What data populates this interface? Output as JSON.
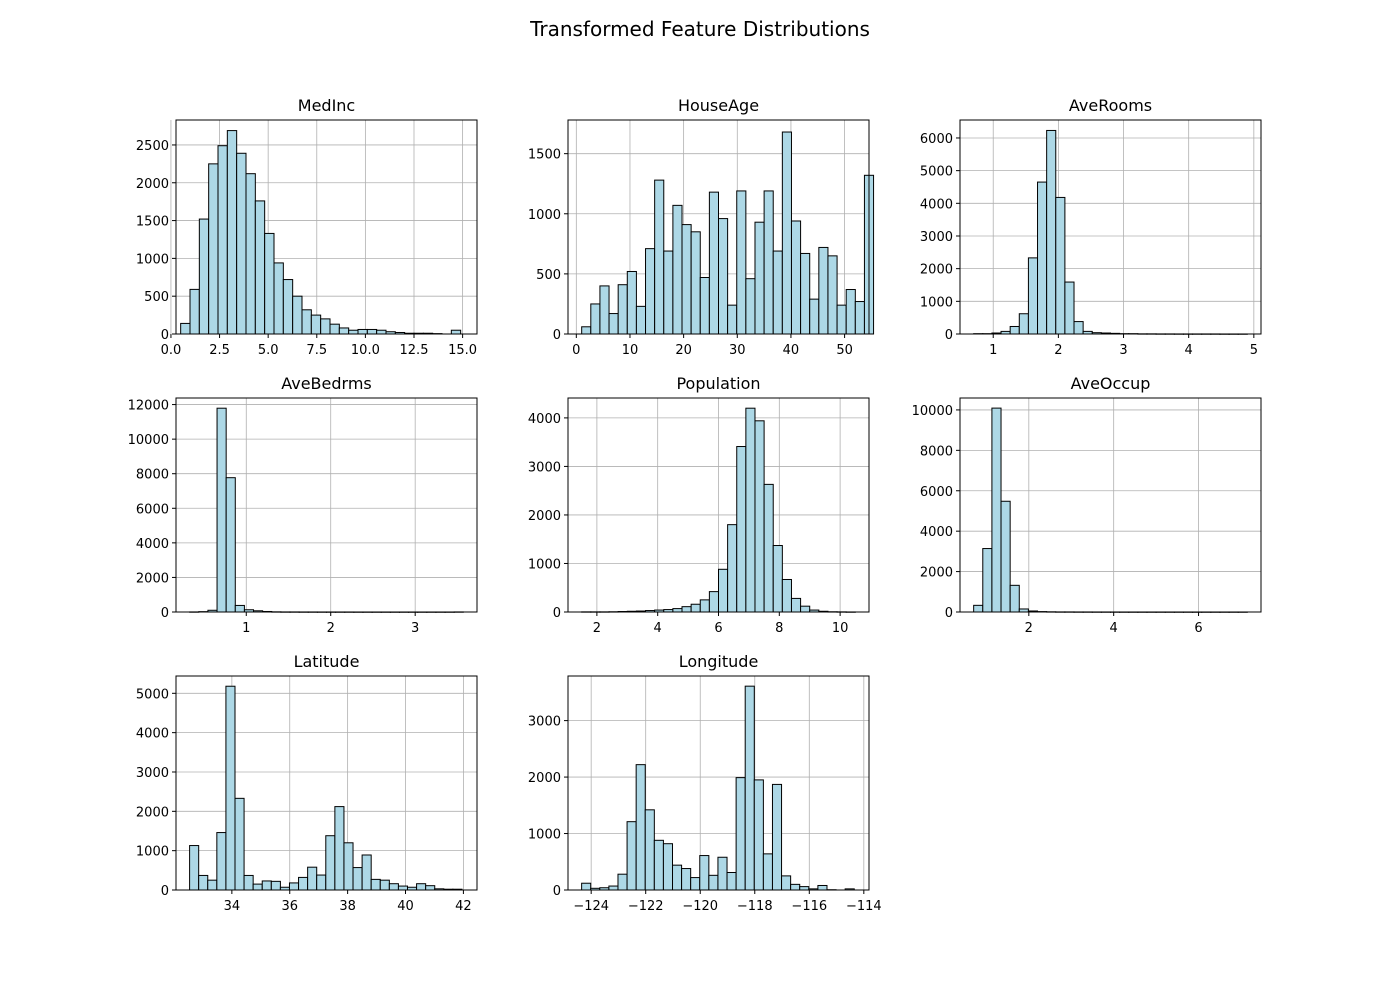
{
  "figure": {
    "title": "Transformed Feature Distributions"
  },
  "colors": {
    "bar_fill": "#add8e6",
    "bar_edge": "#000000",
    "grid": "#b0b0b0"
  },
  "chart_data": [
    {
      "type": "bar",
      "title": "MedInc",
      "bin_start": 0.5,
      "bin_width": 0.48,
      "values": [
        140,
        590,
        1520,
        2250,
        2490,
        2690,
        2390,
        2120,
        1760,
        1330,
        940,
        720,
        500,
        320,
        250,
        200,
        130,
        80,
        50,
        60,
        60,
        50,
        30,
        20,
        10,
        10,
        10,
        5,
        0,
        50
      ],
      "xlim": [
        0.26,
        15.74
      ],
      "ylim": [
        0,
        2830
      ],
      "xticks": [
        0.0,
        2.5,
        5.0,
        7.5,
        10.0,
        12.5,
        15.0
      ],
      "xtick_labels": [
        "0.0",
        "2.5",
        "5.0",
        "7.5",
        "10.0",
        "12.5",
        "15.0"
      ],
      "yticks": [
        0,
        500,
        1000,
        1500,
        2000,
        2500
      ],
      "ytick_labels": [
        "0",
        "500",
        "1000",
        "1500",
        "2000",
        "2500"
      ],
      "grid": true
    },
    {
      "type": "bar",
      "title": "HouseAge",
      "bin_start": 1,
      "bin_width": 1.7,
      "values": [
        60,
        250,
        400,
        170,
        410,
        520,
        230,
        710,
        1280,
        690,
        1070,
        910,
        850,
        470,
        1180,
        960,
        240,
        1190,
        460,
        930,
        1190,
        690,
        1680,
        940,
        670,
        290,
        720,
        650,
        240,
        370,
        270,
        1320
      ],
      "xlim": [
        -1.55,
        54.55
      ],
      "ylim": [
        0,
        1780
      ],
      "xticks": [
        0,
        10,
        20,
        30,
        40,
        50
      ],
      "xtick_labels": [
        "0",
        "10",
        "20",
        "30",
        "40",
        "50"
      ],
      "yticks": [
        0,
        500,
        1000,
        1500
      ],
      "ytick_labels": [
        "0",
        "500",
        "1000",
        "1500"
      ],
      "grid": true
    },
    {
      "type": "bar",
      "title": "AveRooms",
      "bin_start": 0.7,
      "bin_width": 0.14,
      "values": [
        10,
        10,
        30,
        80,
        230,
        620,
        2330,
        4650,
        6230,
        4180,
        1590,
        380,
        80,
        40,
        30,
        20,
        10,
        10,
        5,
        5,
        3,
        3,
        2,
        2,
        2,
        2,
        2,
        1,
        1,
        1
      ],
      "xlim": [
        0.49,
        5.11
      ],
      "ylim": [
        0,
        6550
      ],
      "xticks": [
        1,
        2,
        3,
        4,
        5
      ],
      "xtick_labels": [
        "1",
        "2",
        "3",
        "4",
        "5"
      ],
      "yticks": [
        0,
        1000,
        2000,
        3000,
        4000,
        5000,
        6000
      ],
      "ytick_labels": [
        "0",
        "1000",
        "2000",
        "3000",
        "4000",
        "5000",
        "6000"
      ],
      "grid": true
    },
    {
      "type": "bar",
      "title": "AveBedrms",
      "bin_start": 0.33,
      "bin_width": 0.108,
      "values": [
        5,
        20,
        100,
        11790,
        7770,
        380,
        130,
        70,
        30,
        10,
        5,
        5,
        3,
        3,
        2,
        2,
        2,
        2,
        1,
        1,
        1,
        1,
        1,
        1,
        1,
        1,
        1,
        1,
        1,
        5
      ],
      "xlim": [
        0.168,
        3.732
      ],
      "ylim": [
        0,
        12380
      ],
      "xticks": [
        1,
        2,
        3
      ],
      "xtick_labels": [
        "1",
        "2",
        "3"
      ],
      "yticks": [
        0,
        2000,
        4000,
        6000,
        8000,
        10000,
        12000
      ],
      "ytick_labels": [
        "0",
        "2000",
        "4000",
        "6000",
        "8000",
        "10000",
        "12000"
      ],
      "grid": true
    },
    {
      "type": "bar",
      "title": "Population",
      "bin_start": 1.5,
      "bin_width": 0.3,
      "values": [
        3,
        3,
        3,
        5,
        10,
        15,
        20,
        30,
        40,
        50,
        70,
        110,
        160,
        250,
        420,
        880,
        1800,
        3410,
        4200,
        3940,
        2630,
        1370,
        670,
        280,
        120,
        40,
        15,
        5,
        3,
        1
      ],
      "xlim": [
        1.05,
        10.95
      ],
      "ylim": [
        0,
        4410
      ],
      "xticks": [
        2,
        4,
        6,
        8,
        10
      ],
      "xtick_labels": [
        "2",
        "4",
        "6",
        "8",
        "10"
      ],
      "yticks": [
        0,
        1000,
        2000,
        3000,
        4000
      ],
      "ytick_labels": [
        "0",
        "1000",
        "2000",
        "3000",
        "4000"
      ],
      "grid": true
    },
    {
      "type": "bar",
      "title": "AveOccup",
      "bin_start": 0.7,
      "bin_width": 0.215,
      "values": [
        330,
        3140,
        10090,
        5480,
        1320,
        150,
        50,
        20,
        10,
        5,
        5,
        3,
        3,
        2,
        2,
        2,
        1,
        1,
        1,
        1,
        1,
        1,
        1,
        1,
        1,
        1,
        1,
        1,
        1,
        1
      ],
      "xlim": [
        0.378,
        7.472
      ],
      "ylim": [
        0,
        10590
      ],
      "xticks": [
        2,
        4,
        6
      ],
      "xtick_labels": [
        "2",
        "4",
        "6"
      ],
      "yticks": [
        0,
        2000,
        4000,
        6000,
        8000,
        10000
      ],
      "ytick_labels": [
        "0",
        "2000",
        "4000",
        "6000",
        "8000",
        "10000"
      ],
      "grid": true
    },
    {
      "type": "bar",
      "title": "Latitude",
      "bin_start": 32.54,
      "bin_width": 0.3137,
      "values": [
        1130,
        370,
        250,
        1460,
        5180,
        2330,
        370,
        150,
        230,
        220,
        70,
        180,
        320,
        580,
        380,
        1380,
        2120,
        1200,
        570,
        890,
        270,
        250,
        160,
        100,
        70,
        160,
        110,
        30,
        20,
        20
      ],
      "xlim": [
        32.07,
        42.47
      ],
      "ylim": [
        0,
        5440
      ],
      "xticks": [
        34,
        36,
        38,
        40,
        42
      ],
      "xtick_labels": [
        "34",
        "36",
        "38",
        "40",
        "42"
      ],
      "yticks": [
        0,
        1000,
        2000,
        3000,
        4000,
        5000
      ],
      "ytick_labels": [
        "0",
        "1000",
        "2000",
        "3000",
        "4000",
        "5000"
      ],
      "grid": true
    },
    {
      "type": "bar",
      "title": "Longitude",
      "bin_start": -124.35,
      "bin_width": 0.3333,
      "values": [
        120,
        30,
        40,
        70,
        280,
        1210,
        2220,
        1420,
        880,
        820,
        440,
        380,
        220,
        610,
        260,
        580,
        310,
        1990,
        3610,
        1950,
        640,
        1870,
        250,
        100,
        60,
        20,
        80,
        5,
        0,
        20
      ],
      "xlim": [
        -124.85,
        -113.81
      ],
      "ylim": [
        0,
        3790
      ],
      "xticks": [
        -124,
        -122,
        -120,
        -118,
        -116,
        -114
      ],
      "xtick_labels": [
        "−124",
        "−122",
        "−120",
        "−118",
        "−116",
        "−114"
      ],
      "yticks": [
        0,
        1000,
        2000,
        3000
      ],
      "ytick_labels": [
        "0",
        "1000",
        "2000",
        "3000"
      ],
      "grid": true
    }
  ]
}
